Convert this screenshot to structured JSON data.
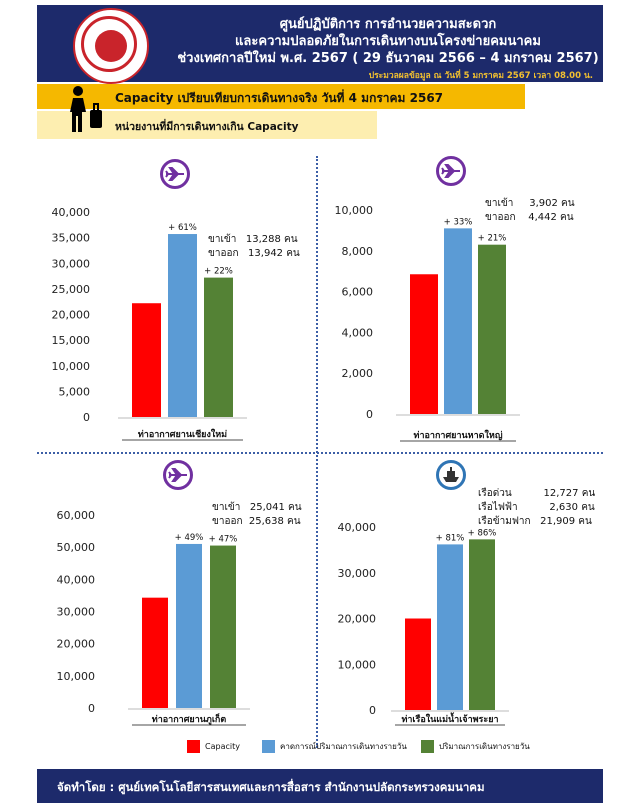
{
  "header": {
    "line1": "ศูนย์ปฏิบัติการ การอำนวยความสะดวก",
    "line2": "และความปลอดภัยในการเดินทางบนโครงข่ายคมนาคม",
    "line3": "ช่วงเทศกาลปีใหม่ พ.ศ. 2567  ( 29 ธันวาคม 2566 – 4 มกราคม 2567)",
    "note": "ประมวลผลข้อมูล ณ วันที่ 5 มกราคม 2567 เวลา 08.00 น."
  },
  "band1": "Capacity เปรียบเทียบการเดินทางจริง  วันที่ 4 มกราคม 2567",
  "band2": "หน่วยงานที่มีการเดินทางเกิน Capacity",
  "colors": {
    "capacity": "#ff0000",
    "forecast": "#5b9bd5",
    "actual": "#548235"
  },
  "legend": [
    "Capacity",
    "คาดการณ์ปริมาณการเดินทางรายวัน",
    "ปริมาณการเดินทางรายวัน"
  ],
  "notes": {
    "cnx": "ขาเข้า   13,288 คน\nขาออก   13,942 คน",
    "hdy": "ขาเข้า     3,902 คน\nขาออก    4,442 คน",
    "hkt": "ขาเข้า   25,041 คน\nขาออก  25,638 คน",
    "boat": "เรือด่วน          12,727 คน\nเรือไฟฟ้า          2,630 คน\nเรือข้ามฟาก   21,909 คน"
  },
  "icons": [
    "airplane-icon",
    "airplane-icon",
    "airplane-icon",
    "ship-icon"
  ],
  "footer": "จัดทำโดย : ศูนย์เทคโนโลยีสารสนเทศและการสื่อสาร สำนักงานปลัดกระทรวงคมนาคม",
  "chart_data": [
    {
      "type": "bar",
      "xlabel": "ท่าอากาศยานเชียงใหม่",
      "ylim": [
        0,
        40000
      ],
      "ticks": [
        0,
        5000,
        10000,
        15000,
        20000,
        25000,
        30000,
        35000,
        40000
      ],
      "values": [
        22200,
        35700,
        27200
      ],
      "labels": [
        "",
        "+ 61%",
        "+ 22%"
      ]
    },
    {
      "type": "bar",
      "xlabel": "ท่าอากาศยานหาดใหญ่",
      "ylim": [
        0,
        10000
      ],
      "ticks": [
        0,
        2000,
        4000,
        6000,
        8000,
        10000
      ],
      "values": [
        6850,
        9100,
        8300
      ],
      "labels": [
        "",
        "+ 33%",
        "+ 21%"
      ]
    },
    {
      "type": "bar",
      "xlabel": "ท่าอากาศยานภูเก็ต",
      "ylim": [
        0,
        60000
      ],
      "ticks": [
        0,
        10000,
        20000,
        30000,
        40000,
        50000,
        60000
      ],
      "values": [
        34300,
        51000,
        50500
      ],
      "labels": [
        "",
        "+ 49%",
        "+ 47%"
      ]
    },
    {
      "type": "bar",
      "xlabel": "ท่าเรือในแม่น้ำเจ้าพระยา",
      "ylim": [
        0,
        40000
      ],
      "ticks": [
        0,
        10000,
        20000,
        30000,
        40000
      ],
      "values": [
        20000,
        36200,
        37300
      ],
      "labels": [
        "",
        "+ 81%",
        "+ 86%"
      ]
    }
  ]
}
